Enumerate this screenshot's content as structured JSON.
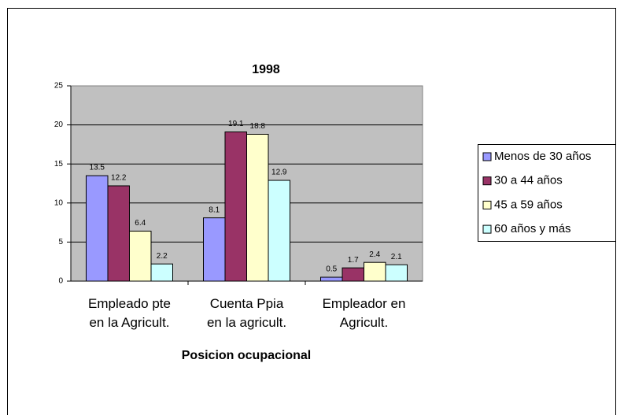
{
  "chart_data": {
    "type": "bar",
    "title": "1998",
    "x_label": "Posicion ocupacional",
    "categories": [
      "Empleado pte\nen la Agricult.",
      "Cuenta Ppia\nen la agricult.",
      "Empleador en\nAgricult."
    ],
    "series": [
      {
        "name": "Menos de 30 años",
        "color": "#9999ff",
        "values": [
          13.5,
          8.1,
          0.5
        ]
      },
      {
        "name": "30 a 44 años",
        "color": "#993366",
        "values": [
          12.2,
          19.1,
          1.7
        ]
      },
      {
        "name": "45 a 59 años",
        "color": "#ffffcc",
        "values": [
          6.4,
          18.8,
          2.4
        ]
      },
      {
        "name": "60 años y más",
        "color": "#ccffff",
        "values": [
          2.2,
          12.9,
          2.1
        ]
      }
    ],
    "ylim": [
      0,
      25
    ],
    "yticks": [
      0,
      5,
      10,
      15,
      20,
      25
    ],
    "grid": true,
    "legend": "right"
  }
}
